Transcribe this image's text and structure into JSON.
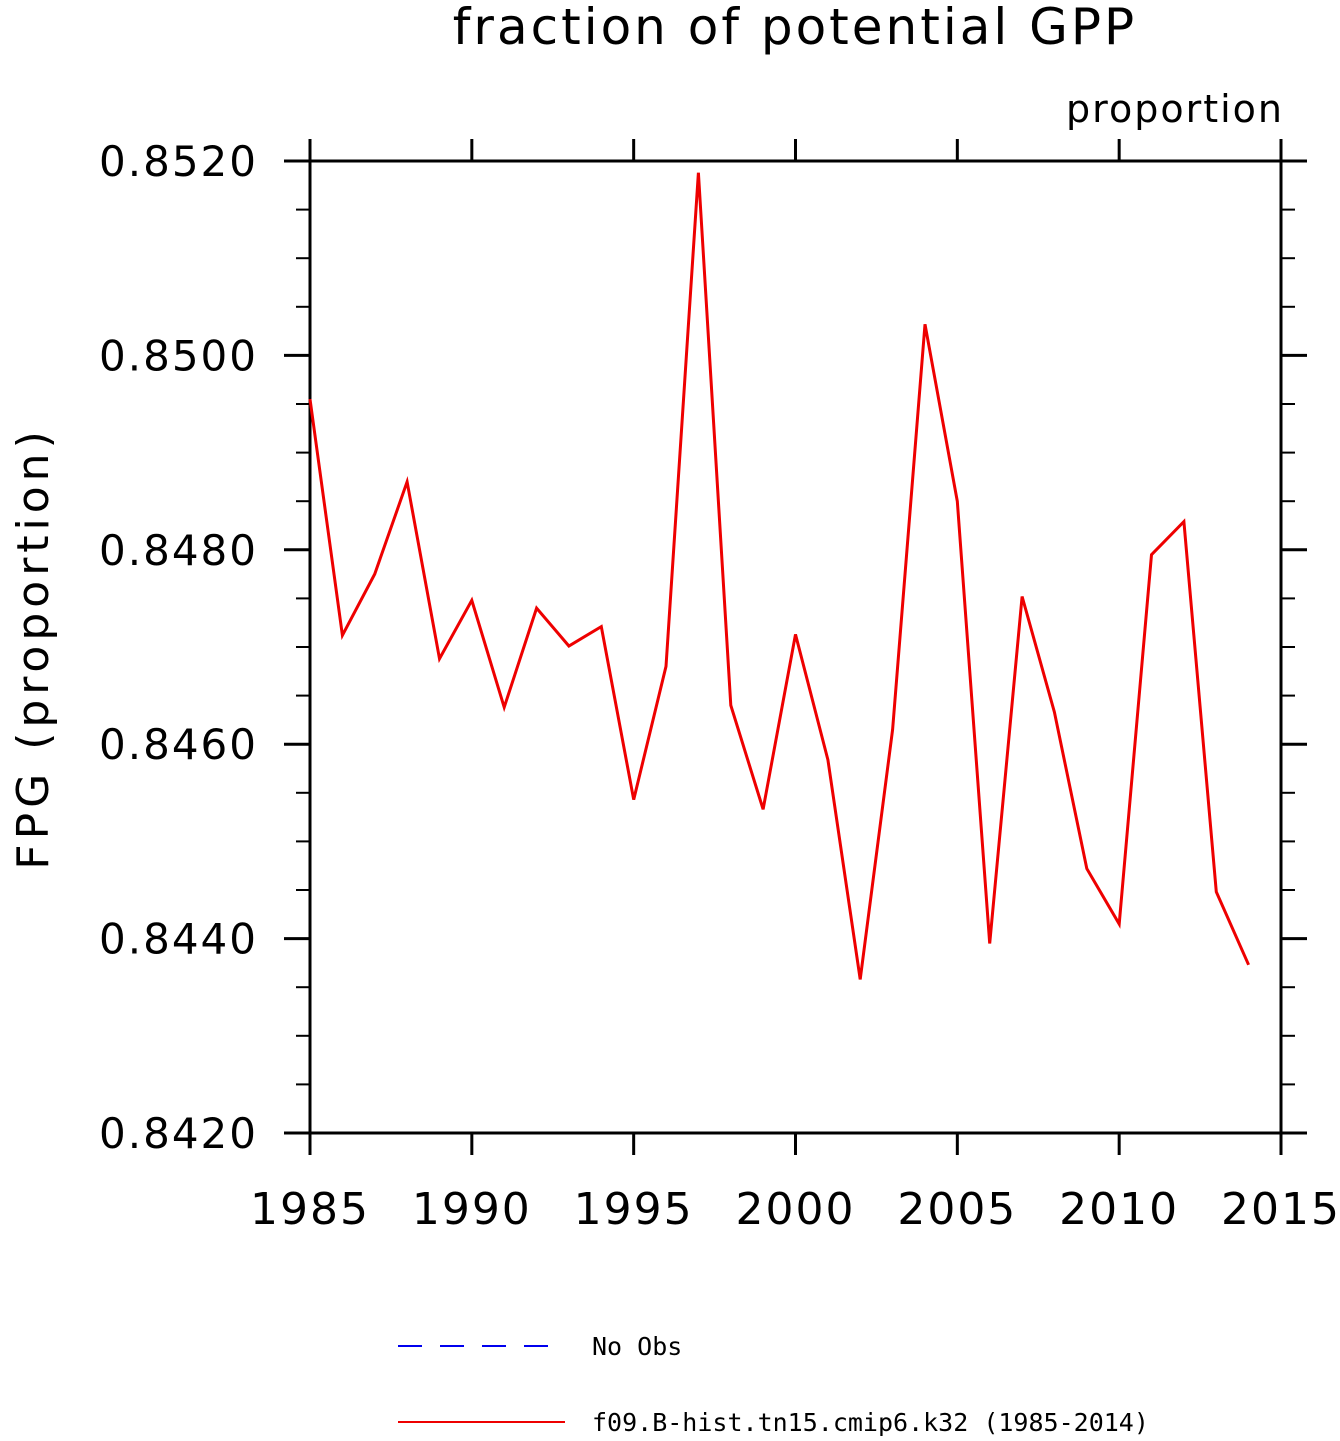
{
  "chart_data": {
    "type": "line",
    "title": "fraction of potential GPP",
    "subtitle": "proportion",
    "xlabel": "",
    "ylabel": "FPG   (proportion)",
    "xlim": [
      1985,
      2015
    ],
    "ylim": [
      0.842,
      0.852
    ],
    "xticks": [
      "1985",
      "1990",
      "1995",
      "2000",
      "2005",
      "2010",
      "2015"
    ],
    "yticks": [
      "0.8420",
      "0.8440",
      "0.8460",
      "0.8480",
      "0.8500",
      "0.8520"
    ],
    "colors": {
      "model": "#ee0000",
      "obs": "#0000ee",
      "axis": "#000000"
    },
    "x": [
      1985,
      1986,
      1987,
      1988,
      1989,
      1990,
      1991,
      1992,
      1993,
      1994,
      1995,
      1996,
      1997,
      1998,
      1999,
      2000,
      2001,
      2002,
      2003,
      2004,
      2005,
      2006,
      2007,
      2008,
      2009,
      2010,
      2011,
      2012,
      2013,
      2014
    ],
    "series": [
      {
        "name": "f09.B-hist.tn15.cmip6.k32 (1985-2014)",
        "style": "solid",
        "values": [
          0.84955,
          0.84712,
          0.84775,
          0.8487,
          0.84688,
          0.84748,
          0.84638,
          0.8474,
          0.84701,
          0.84721,
          0.84543,
          0.8468,
          0.85188,
          0.8464,
          0.84533,
          0.84713,
          0.84584,
          0.84358,
          0.84615,
          0.85032,
          0.8485,
          0.84395,
          0.84752,
          0.84633,
          0.84472,
          0.84415,
          0.84795,
          0.84829,
          0.84448,
          0.84373
        ]
      }
    ],
    "legend": [
      {
        "label": "No Obs",
        "style": "dashed",
        "color": "#0000ee"
      },
      {
        "label": "f09.B-hist.tn15.cmip6.k32 (1985-2014)",
        "style": "solid",
        "color": "#ee0000"
      }
    ],
    "legend_position": "bottom",
    "grid": false
  }
}
